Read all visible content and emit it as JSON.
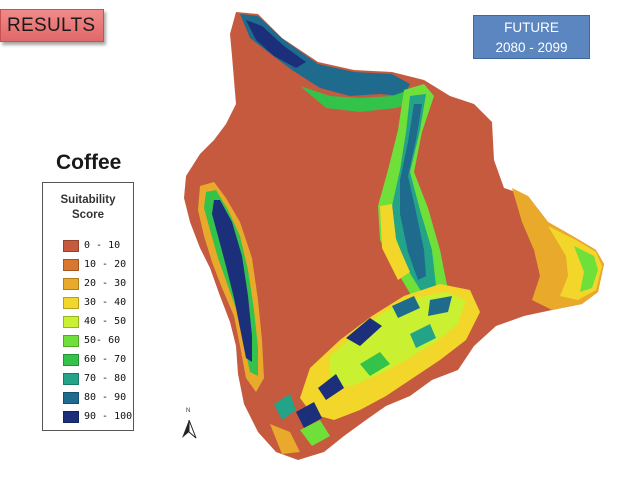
{
  "header": {
    "results_label": "RESULTS",
    "future_line1": "FUTURE",
    "future_line2": "2080 - 2099"
  },
  "legend": {
    "title": "Coffee",
    "heading_line1": "Suitability",
    "heading_line2": "Score",
    "classes": [
      {
        "label": "0 - 10",
        "color": "#c65a3e"
      },
      {
        "label": "10 - 20",
        "color": "#d9772f"
      },
      {
        "label": "20 - 30",
        "color": "#e9a92a"
      },
      {
        "label": "30 - 40",
        "color": "#f2d62a"
      },
      {
        "label": "40 - 50",
        "color": "#c9f031"
      },
      {
        "label": "50- 60",
        "color": "#6fe03a"
      },
      {
        "label": "60 - 70",
        "color": "#33c24a"
      },
      {
        "label": "70 - 80",
        "color": "#23a387"
      },
      {
        "label": "80 - 90",
        "color": "#1e6b8e"
      },
      {
        "label": "90 - 100",
        "color": "#1b2f7a"
      }
    ]
  },
  "north_arrow": {
    "letter": "N"
  }
}
